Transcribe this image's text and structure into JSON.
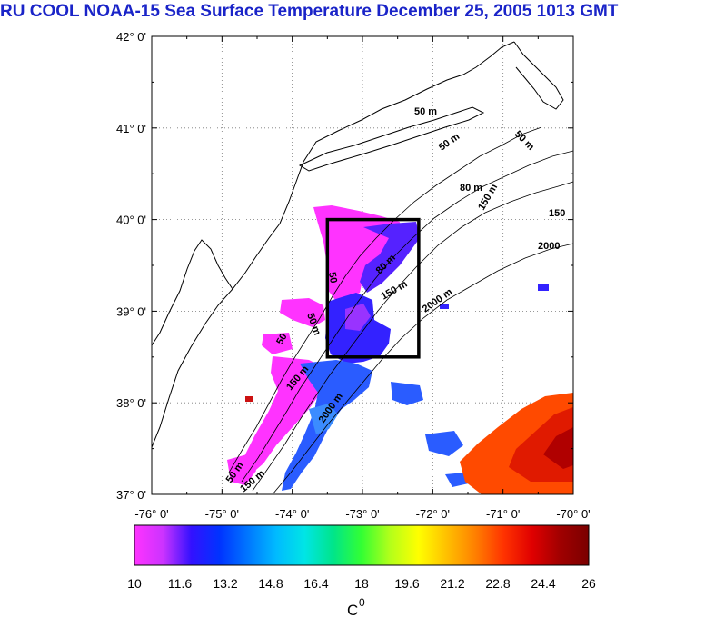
{
  "title": "RU COOL  NOAA-15 Sea Surface Temperature December 25, 2005 1013 GMT",
  "map": {
    "lat_labels": [
      "42° 0'",
      "41° 0'",
      "40° 0'",
      "39° 0'",
      "38° 0'",
      "37° 0'"
    ],
    "lon_labels": [
      "-76° 0'",
      "-75° 0'",
      "-74° 0'",
      "-73° 0'",
      "-72° 0'",
      "-71° 0'",
      "-70° 0'"
    ],
    "contour_labels": [
      "50 m",
      "50 m",
      "50 m",
      "80 m",
      "150 m",
      "150",
      "2000",
      "50",
      "80 m",
      "150 m",
      "2000 m",
      "50 m",
      "50",
      "150 m",
      "2000 m",
      "50 m",
      "150 m"
    ],
    "study_box": {
      "lon_min": -73.5,
      "lon_max": -72.2,
      "lat_min": 38.5,
      "lat_max": 40.0
    }
  },
  "colorbar": {
    "range": [
      10,
      26
    ],
    "tick_labels": [
      "10",
      "11.6",
      "13.2",
      "14.8",
      "16.4",
      "18",
      "19.6",
      "21.2",
      "22.8",
      "24.4",
      "26"
    ],
    "unit_label": "C",
    "unit_superscript": "0",
    "colors": [
      "#ff33ff",
      "#cc33ff",
      "#3311ff",
      "#0033ff",
      "#0077ff",
      "#00bbff",
      "#00e5e5",
      "#00e58a",
      "#33ff33",
      "#b3ff1a",
      "#ffff00",
      "#ffc000",
      "#ff8000",
      "#ff3300",
      "#e00000",
      "#a00000",
      "#7a0000"
    ]
  }
}
